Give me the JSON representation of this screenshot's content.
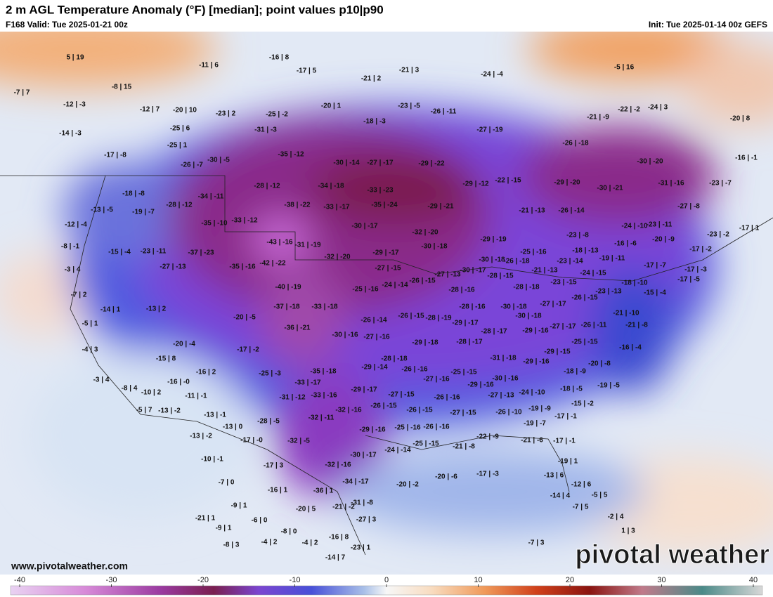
{
  "header": {
    "title": "2 m AGL Temperature Anomaly (°F) [median]; point values p10|p90",
    "valid": "F168 Valid: Tue 2025-01-21 00z",
    "init": "Init: Tue 2025-01-14 00z GEFS"
  },
  "points": [
    "5 | 19",
    "-11 | 6",
    "-16 | 8",
    "-17 | 5",
    "-21 | 2",
    "-21 | 3",
    "-24 | -4",
    "-5 | 16",
    "-7 | 7",
    "-8 | 15",
    "-12 | -3",
    "-12 | 7",
    "-20 | 10",
    "-23 | 2",
    "-25 | -2",
    "-20 | 1",
    "-23 | -5",
    "-26 | -11",
    "-21 | -9",
    "-22 | -2",
    "-24 | 3",
    "-20 | 8",
    "-14 | -3",
    "-25 | 6",
    "-31 | -3",
    "-18 | -3",
    "-27 | -19",
    "-26 | -18",
    "-17 | -8",
    "-25 | 1",
    "-35 | -12",
    "-30 | -5",
    "-26 | -7",
    "-30 | -14",
    "-27 | -17",
    "-29 | -22",
    "-30 | -20",
    "-16 | -1",
    "-18 | -8",
    "-28 | -12",
    "-34 | -18",
    "-33 | -23",
    "-29 | -12",
    "-22 | -15",
    "-29 | -20",
    "-30 | -21",
    "-31 | -16",
    "-23 | -7",
    "-34 | -11",
    "-38 | -22",
    "-33 | -17",
    "-35 | -24",
    "-29 | -21",
    "-21 | -13",
    "-26 | -14",
    "-27 | -8",
    "-28 | -12",
    "-19 | -7",
    "-13 | -5",
    "-12 | -4",
    "-35 | -10",
    "-33 | -12",
    "-30 | -17",
    "-32 | -20",
    "-24 | -10",
    "-23 | -11",
    "-23 | -2",
    "-17 | 1",
    "-8 | -1",
    "-15 | -4",
    "-23 | -11",
    "-37 | -23",
    "-43 | -16",
    "-31 | -19",
    "-29 | -19",
    "-30 | -18",
    "-29 | -17",
    "-32 | -20",
    "-23 | -8",
    "-20 | -9",
    "-16 | -6",
    "-17 | -2",
    "-18 | -13",
    "-25 | -16",
    "-19 | -11",
    "-26 | -18",
    "-30 | -18",
    "-23 | -14",
    "-3 | 4",
    "-27 | -13",
    "-35 | -16",
    "-42 | -22",
    "-27 | -15",
    "-17 | -7",
    "-17 | -3",
    "-27 | -13",
    "-30 | -17",
    "-21 | -13",
    "-24 | -15",
    "-26 | -15",
    "-28 | -15",
    "-7 | 2",
    "-40 | -19",
    "-25 | -16",
    "-24 | -14",
    "-28 | -16",
    "-28 | -18",
    "-23 | -15",
    "-23 | -13",
    "-18 | -10",
    "-15 | -4",
    "-17 | -5",
    "-14 | 1",
    "-13 | 2",
    "-37 | -18",
    "-33 | -18",
    "-28 | -16",
    "-30 | -18",
    "-27 | -17",
    "-26 | -15",
    "-20 | -5",
    "-26 | -14",
    "-26 | -15",
    "-28 | -19",
    "-29 | -17",
    "-30 | -18",
    "-21 | -10",
    "-5 | 1",
    "-36 | -21",
    "-30 | -16",
    "-27 | -16",
    "-28 | -17",
    "-29 | -16",
    "-27 | -17",
    "-26 | -11",
    "-21 | -8",
    "-20 | -4",
    "-17 | -2",
    "-29 | -18",
    "-28 | -17",
    "-29 | -15",
    "-25 | -15",
    "-16 | -4",
    "-4 | 3",
    "-15 | 8",
    "-28 | -18",
    "-31 | -18",
    "-29 | -16",
    "-20 | -8",
    "-16 | 2",
    "-25 | -3",
    "-35 | -18",
    "-29 | -14",
    "-26 | -16",
    "-25 | -15",
    "-18 | -9",
    "-3 | 4",
    "-16 | -0",
    "-33 | -17",
    "-27 | -16",
    "-29 | -16",
    "-30 | -16",
    "-19 | -5",
    "-8 | 4",
    "-10 | 2",
    "-29 | -17",
    "-24 | -10",
    "-18 | -5",
    "-11 | -1",
    "-31 | -12",
    "-33 | -16",
    "-27 | -15",
    "-26 | -16",
    "-27 | -13",
    "-15 | -2",
    "-5 | 7",
    "-13 | -2",
    "-32 | -16",
    "-26 | -15",
    "-26 | -15",
    "-27 | -15",
    "-26 | -10",
    "-19 | -9",
    "-13 | -1",
    "-28 | -5",
    "-32 | -11",
    "-17 | -1",
    "-19 | -7",
    "-13 | 0",
    "-29 | -16",
    "-25 | -16",
    "-26 | -16",
    "-13 | -2",
    "-17 | -0",
    "-32 | -5",
    "-22 | -9",
    "-21 | -6",
    "-17 | -1",
    "-25 | -15",
    "-21 | -8",
    "-24 | -14",
    "-30 | -17",
    "-10 | -1",
    "-19 | 1",
    "-32 | -16",
    "-17 | 3",
    "-17 | -3",
    "-20 | -6",
    "-13 | 6",
    "-7 | 0",
    "-34 | -17",
    "-20 | -2",
    "-12 | 6",
    "-16 | 1",
    "-36 | 1",
    "-14 | 4",
    "-5 | 5",
    "-9 | 1",
    "-20 | 5",
    "-31 | -8",
    "-21 | -2",
    "-7 | 5",
    "-21 | 1",
    "-6 | 0",
    "-27 | 3",
    "-2 | 4",
    "-9 | 1",
    "-8 | 0",
    "1 | 3",
    "-16 | 8",
    "-8 | 3",
    "-4 | 2",
    "-4 | 2",
    "-7 | 3",
    "-23 | 1",
    "-14 | 7"
  ],
  "footer": {
    "website": "www.pivotalweather.com",
    "logo": "pivotal weather"
  },
  "colorbar": {
    "range": [
      -40,
      40
    ],
    "ticks": [
      -40,
      -30,
      -20,
      -10,
      0,
      10,
      20,
      30,
      40
    ]
  }
}
